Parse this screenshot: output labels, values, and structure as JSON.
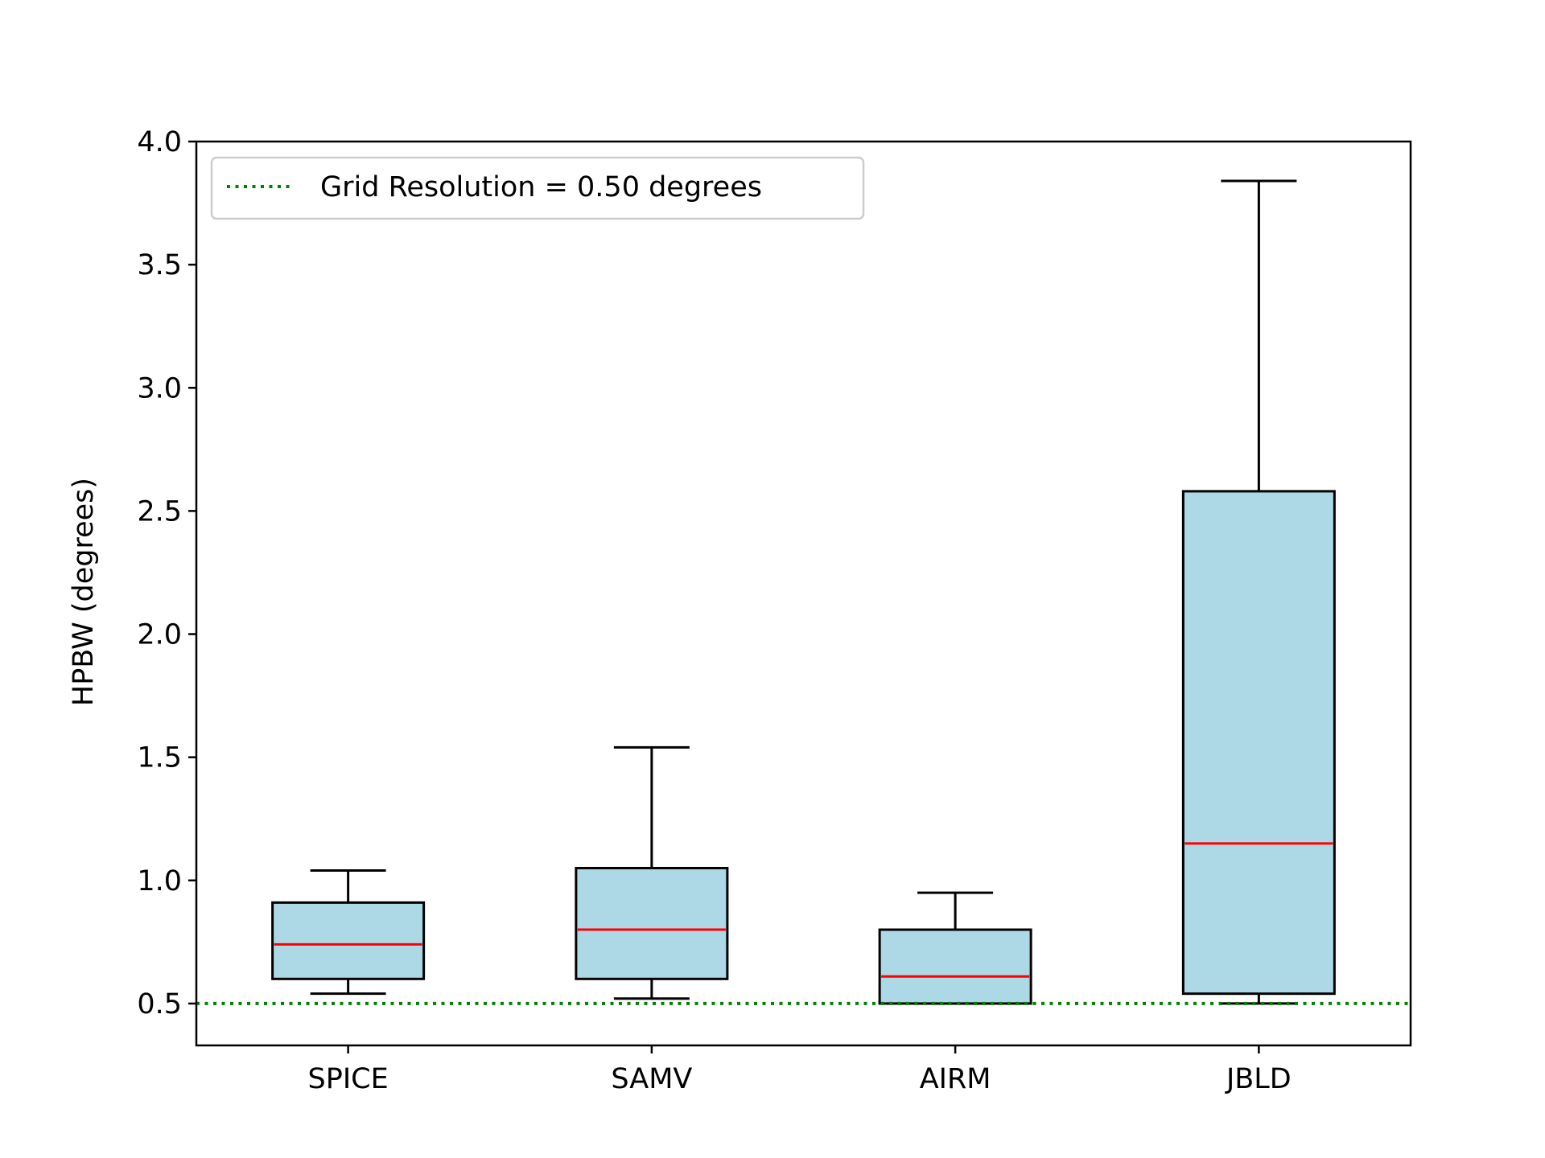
{
  "chart_data": {
    "type": "box",
    "title": "",
    "xlabel": "",
    "ylabel": "HPBW (degrees)",
    "ylim": [
      0.33,
      4.0
    ],
    "yticks": [
      "0.5",
      "1.0",
      "1.5",
      "2.0",
      "2.5",
      "3.0",
      "3.5",
      "4.0"
    ],
    "grid": false,
    "legend_position": "top-left",
    "categories": [
      "SPICE",
      "SAMV",
      "AIRM",
      "JBLD"
    ],
    "boxes": [
      {
        "label": "SPICE",
        "whisker_low": 0.54,
        "q1": 0.6,
        "median": 0.74,
        "q3": 0.91,
        "whisker_high": 1.04
      },
      {
        "label": "SAMV",
        "whisker_low": 0.52,
        "q1": 0.6,
        "median": 0.8,
        "q3": 1.05,
        "whisker_high": 1.54
      },
      {
        "label": "AIRM",
        "whisker_low": 0.5,
        "q1": 0.5,
        "median": 0.61,
        "q3": 0.8,
        "whisker_high": 0.95
      },
      {
        "label": "JBLD",
        "whisker_low": 0.5,
        "q1": 0.54,
        "median": 1.15,
        "q3": 2.58,
        "whisker_high": 3.84
      }
    ],
    "reference_line": {
      "label": "Grid Resolution = 0.50 degrees",
      "value": 0.5,
      "style": "dotted",
      "color": "#008000"
    },
    "colors": {
      "box_fill": "#add8e6",
      "box_edge": "#000000",
      "median": "#ff0000"
    }
  }
}
